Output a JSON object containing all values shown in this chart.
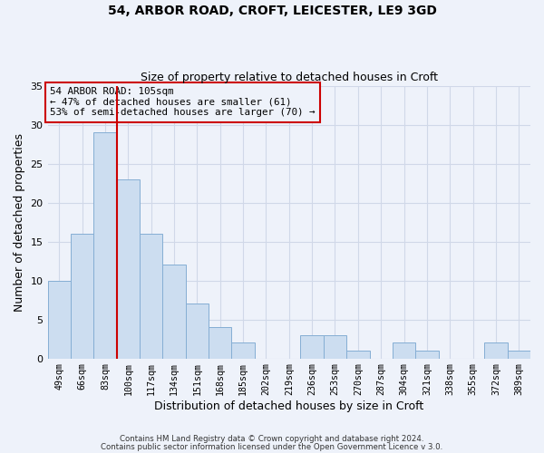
{
  "title1": "54, ARBOR ROAD, CROFT, LEICESTER, LE9 3GD",
  "title2": "Size of property relative to detached houses in Croft",
  "xlabel": "Distribution of detached houses by size in Croft",
  "ylabel": "Number of detached properties",
  "bar_labels": [
    "49sqm",
    "66sqm",
    "83sqm",
    "100sqm",
    "117sqm",
    "134sqm",
    "151sqm",
    "168sqm",
    "185sqm",
    "202sqm",
    "219sqm",
    "236sqm",
    "253sqm",
    "270sqm",
    "287sqm",
    "304sqm",
    "321sqm",
    "338sqm",
    "355sqm",
    "372sqm",
    "389sqm"
  ],
  "bar_values": [
    10,
    16,
    29,
    23,
    16,
    12,
    7,
    4,
    2,
    0,
    0,
    3,
    3,
    1,
    0,
    2,
    1,
    0,
    0,
    2,
    1
  ],
  "bar_color": "#ccddf0",
  "bar_edgecolor": "#85aed4",
  "vline_color": "#cc0000",
  "vline_pos": 2.5,
  "ylim": [
    0,
    35
  ],
  "yticks": [
    0,
    5,
    10,
    15,
    20,
    25,
    30,
    35
  ],
  "annotation_line1": "54 ARBOR ROAD: 105sqm",
  "annotation_line2": "← 47% of detached houses are smaller (61)",
  "annotation_line3": "53% of semi-detached houses are larger (70) →",
  "annotation_box_color": "#cc0000",
  "footer1": "Contains HM Land Registry data © Crown copyright and database right 2024.",
  "footer2": "Contains public sector information licensed under the Open Government Licence v 3.0.",
  "grid_color": "#d0d8e8",
  "background_color": "#eef2fa"
}
